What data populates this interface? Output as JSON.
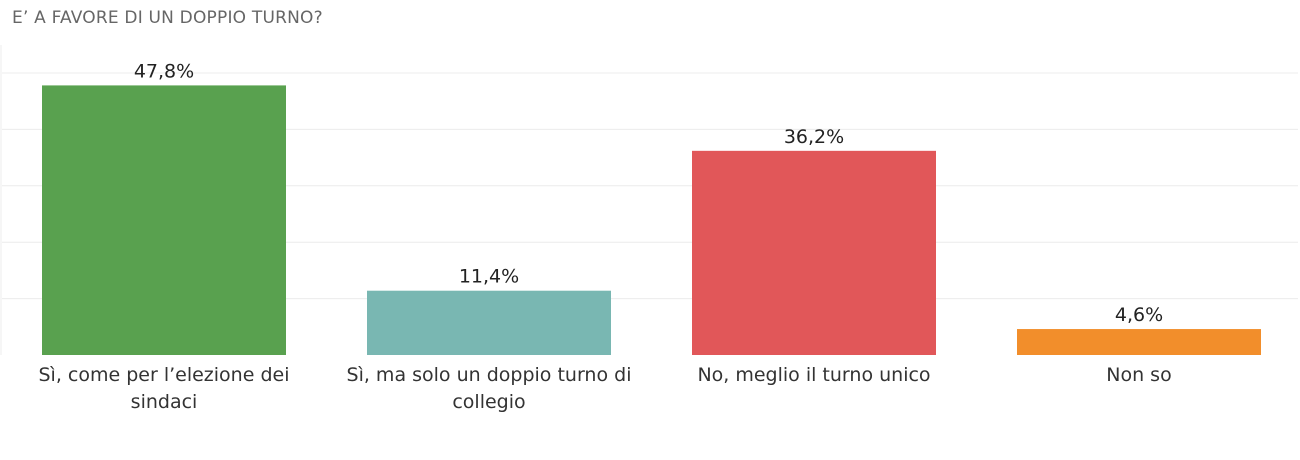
{
  "chart_data": {
    "type": "bar",
    "title": "E’ A FAVORE DI UN DOPPIO TURNO?",
    "xlabel": "",
    "ylabel": "",
    "ylim": [
      0,
      50
    ],
    "grid": true,
    "legend": "none",
    "categories": [
      "Sì, come per l’elezione dei sindaci",
      "Sì, ma solo un doppio turno di collegio",
      "No, meglio il turno unico",
      "Non so"
    ],
    "values": [
      47.8,
      11.4,
      36.2,
      4.6
    ],
    "value_labels": [
      "47,8%",
      "11,4%",
      "36,2%",
      "4,6%"
    ],
    "colors": [
      "#59a14f",
      "#79b7b2",
      "#e15759",
      "#f28e2b"
    ]
  }
}
